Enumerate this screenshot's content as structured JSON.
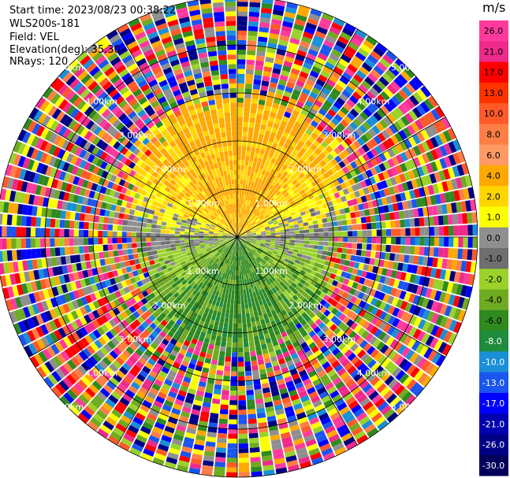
{
  "info": {
    "start_time": "Start time: 2023/08/23 00:38:22",
    "instrument": "WLS200s-181",
    "field": "Field: VEL",
    "elevation": "Elevation(deg): 35.30",
    "nrays": "NRays: 120"
  },
  "colorbar": {
    "unit": "m/s",
    "ticks": [
      "26.0",
      "21.0",
      "17.0",
      "13.0",
      "10.0",
      "8.0",
      "6.0",
      "4.0",
      "2.0",
      "1.0",
      "0.0",
      "-1.0",
      "-2.0",
      "-4.0",
      "-6.0",
      "-8.0",
      "-10.0",
      "-13.0",
      "-17.0",
      "-21.0",
      "-26.0",
      "-30.0"
    ],
    "colors": [
      "#ff3a9c",
      "#ee2a8a",
      "#ff0000",
      "#ff3300",
      "#ff5a28",
      "#ff7e45",
      "#ff9a66",
      "#ffa800",
      "#ffd500",
      "#fbff00",
      "#8f8f8f",
      "#6e6e6e",
      "#9ad22a",
      "#6eab20",
      "#2f8a1f",
      "#1e8c3c",
      "#1b8fd6",
      "#1b55ef",
      "#0000ff",
      "#0000b0",
      "#000087",
      "#00005a"
    ]
  },
  "chart_data": {
    "type": "heatmap",
    "subtype": "ppi-polar",
    "field": "VEL",
    "unit": "m/s",
    "nrays": 120,
    "range_rings_km": [
      1,
      2,
      3,
      4,
      5
    ],
    "ring_labels": [
      "1.00km",
      "2.00km",
      "3.00km",
      "4.00km",
      "5.00km"
    ],
    "color_scale_min": -30.0,
    "color_scale_max": 26.0
  }
}
